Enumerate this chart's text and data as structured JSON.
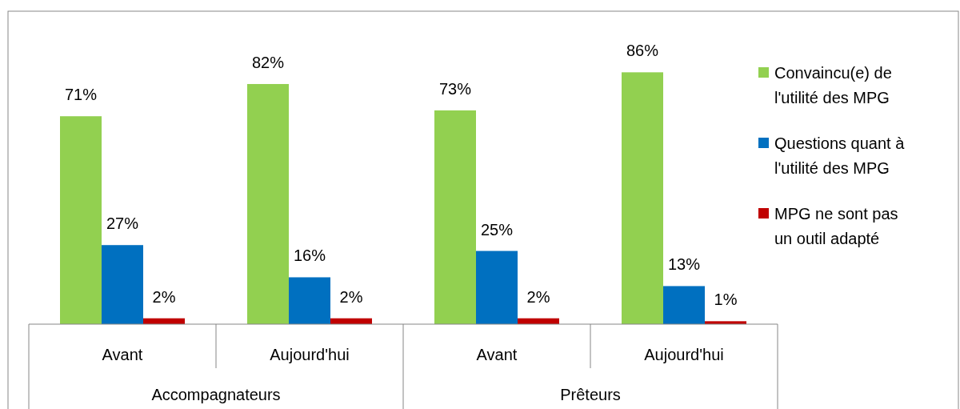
{
  "chart_data": {
    "type": "bar",
    "categories": [
      "Avant",
      "Aujourd'hui",
      "Avant",
      "Aujourd'hui"
    ],
    "series": [
      {
        "name": "Convaincu(e) de l'utilité des MPG",
        "color": "#92d050",
        "values": [
          71,
          82,
          73,
          86
        ],
        "value_labels": [
          "71%",
          "82%",
          "73%",
          "86%"
        ]
      },
      {
        "name": "Questions quant à l'utilité des MPG",
        "color": "#0070c0",
        "values": [
          27,
          16,
          25,
          13
        ],
        "value_labels": [
          "27%",
          "16%",
          "25%",
          "13%"
        ]
      },
      {
        "name": "MPG ne sont pas un outil adapté",
        "color": "#c00000",
        "values": [
          2,
          2,
          2,
          1
        ],
        "value_labels": [
          "2%",
          "2%",
          "2%",
          "1%"
        ]
      }
    ],
    "annotations": [
      "Accompagnateurs",
      "Prêteurs"
    ],
    "legend": "right"
  }
}
